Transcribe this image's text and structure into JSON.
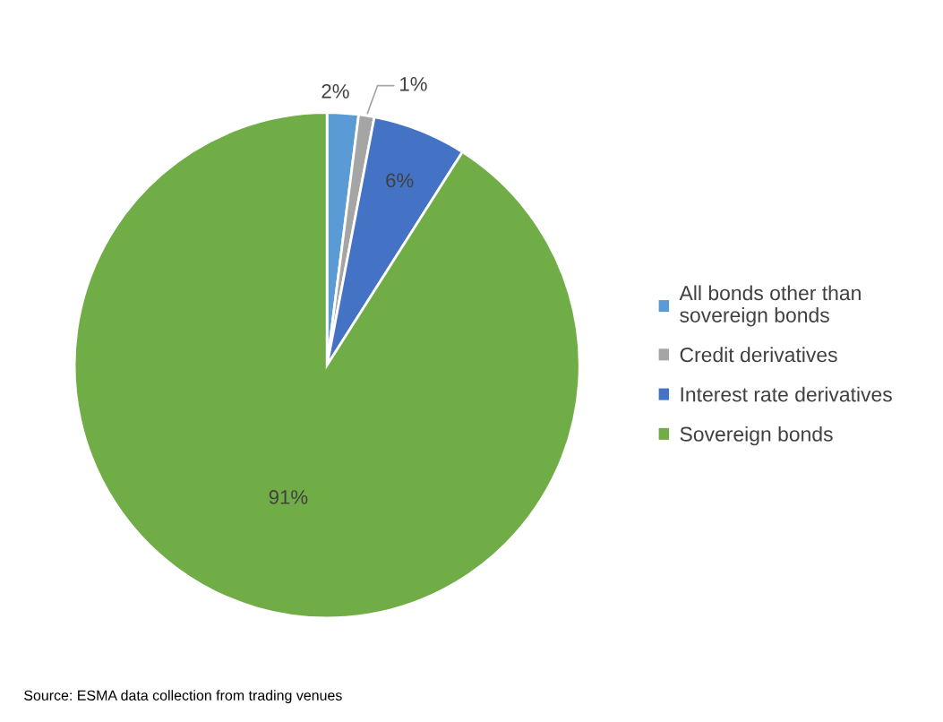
{
  "chart_data": {
    "type": "pie",
    "categories": [
      "All bonds other than sovereign bonds",
      "Credit derivatives",
      "Interest rate derivatives",
      "Sovereign bonds"
    ],
    "values": [
      2,
      1,
      6,
      91
    ],
    "colors": [
      "#5b9bd5",
      "#a5a5a5",
      "#4472c4",
      "#70ad47"
    ],
    "value_labels": [
      "2%",
      "1%",
      "6%",
      "91%"
    ],
    "legend": "right",
    "annotations": [
      "Source: ESMA data collection from trading venues"
    ]
  }
}
